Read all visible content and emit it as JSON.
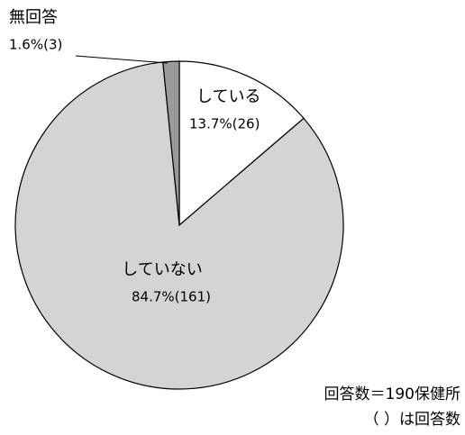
{
  "chart_data": {
    "type": "pie",
    "categories": [
      "している",
      "していない",
      "無回答"
    ],
    "values": [
      13.7,
      84.7,
      1.6
    ],
    "value_labels": [
      "13.7%(26)",
      "84.7%(161)",
      "1.6%(3)"
    ],
    "colors": [
      "#ffffff",
      "#d4d4d4",
      "#9a9a9a"
    ],
    "notes": [
      "回答数＝190保健所",
      "（ ）は回答数"
    ]
  }
}
